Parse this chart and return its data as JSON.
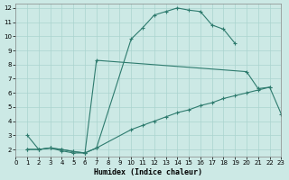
{
  "xlabel": "Humidex (Indice chaleur)",
  "bg_color": "#cce9e5",
  "grid_color": "#aad4cf",
  "line_color": "#2e7b6e",
  "xlim": [
    0,
    23
  ],
  "ylim": [
    1.5,
    12.3
  ],
  "xticks": [
    0,
    1,
    2,
    3,
    4,
    5,
    6,
    7,
    8,
    9,
    10,
    11,
    12,
    13,
    14,
    15,
    16,
    17,
    18,
    19,
    20,
    21,
    22,
    23
  ],
  "yticks": [
    2,
    3,
    4,
    5,
    6,
    7,
    8,
    9,
    10,
    11,
    12
  ],
  "line1_x": [
    1,
    2,
    3,
    4,
    5,
    6,
    7,
    10,
    11,
    12,
    13,
    14,
    15,
    16,
    17,
    18,
    19
  ],
  "line1_y": [
    2.0,
    2.0,
    2.1,
    1.9,
    1.75,
    1.75,
    2.1,
    9.8,
    10.6,
    11.5,
    11.75,
    12.0,
    11.85,
    11.75,
    10.8,
    10.5,
    9.5
  ],
  "line2_x": [
    1,
    2,
    3,
    4,
    5,
    6,
    7,
    20,
    21,
    22
  ],
  "line2_y": [
    3.0,
    2.0,
    2.1,
    2.0,
    1.85,
    1.75,
    8.3,
    7.5,
    6.3,
    6.4
  ],
  "line3_x": [
    1,
    2,
    3,
    4,
    5,
    6,
    7,
    10,
    11,
    12,
    13,
    14,
    15,
    16,
    17,
    18,
    19,
    20,
    21,
    22,
    23
  ],
  "line3_y": [
    2.0,
    2.0,
    2.1,
    2.0,
    1.85,
    1.75,
    2.1,
    3.4,
    3.7,
    4.0,
    4.3,
    4.6,
    4.8,
    5.1,
    5.3,
    5.6,
    5.8,
    6.0,
    6.2,
    6.4,
    4.5
  ]
}
